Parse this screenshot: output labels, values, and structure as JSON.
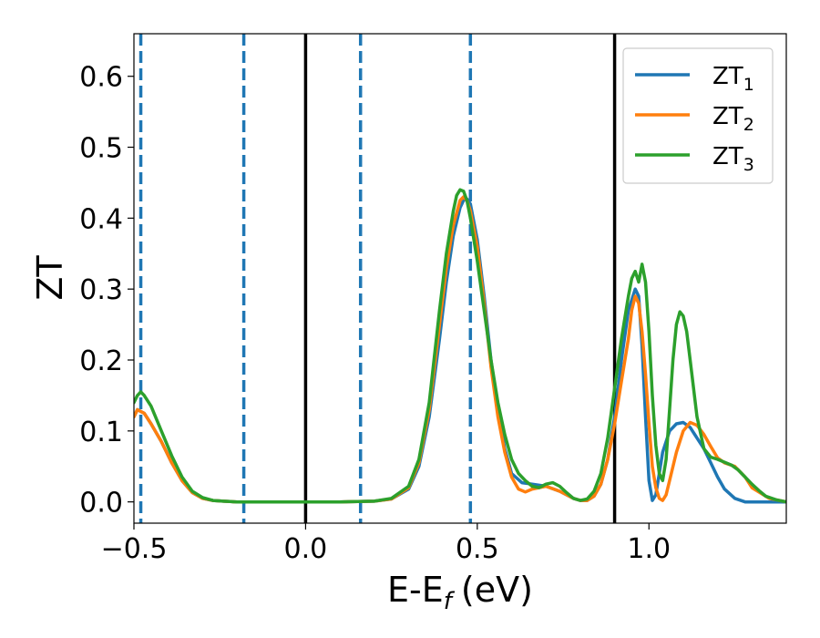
{
  "chart_data": {
    "type": "line",
    "xlabel": "E-E",
    "xlabel_sub": "f",
    "xlabel_unit": "(eV)",
    "ylabel": "ZT",
    "xlim": [
      -0.5,
      1.4
    ],
    "ylim": [
      -0.03,
      0.66
    ],
    "grid": false,
    "legend_position": "top-right",
    "x_ticks": [
      {
        "value": -0.5,
        "label": "−0.5"
      },
      {
        "value": 0.0,
        "label": "0.0"
      },
      {
        "value": 0.5,
        "label": "0.5"
      },
      {
        "value": 1.0,
        "label": "1.0"
      }
    ],
    "y_ticks": [
      {
        "value": 0.0,
        "label": "0.0"
      },
      {
        "value": 0.1,
        "label": "0.1"
      },
      {
        "value": 0.2,
        "label": "0.2"
      },
      {
        "value": 0.3,
        "label": "0.3"
      },
      {
        "value": 0.4,
        "label": "0.4"
      },
      {
        "value": 0.5,
        "label": "0.5"
      },
      {
        "value": 0.6,
        "label": "0.6"
      }
    ],
    "vlines_solid": [
      0.0,
      0.9
    ],
    "vlines_dashed": [
      -0.48,
      -0.18,
      0.16,
      0.48
    ],
    "colors": {
      "solid_line": "#000000",
      "dashed_line": "#1f77b4"
    },
    "series": [
      {
        "name": "ZT",
        "name_sub": "1",
        "color": "#1f77b4",
        "x": [
          -0.5,
          -0.49,
          -0.47,
          -0.45,
          -0.42,
          -0.39,
          -0.36,
          -0.33,
          -0.3,
          -0.27,
          -0.24,
          -0.2,
          -0.1,
          0.0,
          0.1,
          0.2,
          0.25,
          0.3,
          0.33,
          0.36,
          0.39,
          0.41,
          0.43,
          0.45,
          0.46,
          0.47,
          0.48,
          0.5,
          0.52,
          0.54,
          0.56,
          0.58,
          0.6,
          0.63,
          0.66,
          0.7,
          0.74,
          0.78,
          0.8,
          0.82,
          0.84,
          0.86,
          0.88,
          0.9,
          0.92,
          0.94,
          0.96,
          0.97,
          0.98,
          0.99,
          1.0,
          1.01,
          1.02,
          1.03,
          1.04,
          1.06,
          1.08,
          1.1,
          1.12,
          1.14,
          1.16,
          1.18,
          1.2,
          1.22,
          1.25,
          1.28,
          1.3,
          1.35,
          1.4
        ],
        "y": [
          0.12,
          0.13,
          0.125,
          0.11,
          0.085,
          0.055,
          0.03,
          0.013,
          0.005,
          0.002,
          0.001,
          0.0,
          0.0,
          0.0,
          0.0,
          0.001,
          0.004,
          0.018,
          0.05,
          0.12,
          0.23,
          0.31,
          0.375,
          0.415,
          0.425,
          0.427,
          0.42,
          0.37,
          0.29,
          0.2,
          0.13,
          0.075,
          0.04,
          0.027,
          0.025,
          0.022,
          0.015,
          0.005,
          0.002,
          0.002,
          0.008,
          0.025,
          0.06,
          0.12,
          0.2,
          0.27,
          0.3,
          0.29,
          0.22,
          0.12,
          0.03,
          0.002,
          0.01,
          0.04,
          0.07,
          0.1,
          0.11,
          0.112,
          0.105,
          0.09,
          0.075,
          0.055,
          0.035,
          0.018,
          0.005,
          0.0,
          0.0,
          0.0,
          0.0
        ]
      },
      {
        "name": "ZT",
        "name_sub": "2",
        "color": "#ff7f0e",
        "x": [
          -0.5,
          -0.49,
          -0.47,
          -0.45,
          -0.42,
          -0.39,
          -0.36,
          -0.33,
          -0.3,
          -0.27,
          -0.24,
          -0.2,
          -0.1,
          0.0,
          0.1,
          0.2,
          0.25,
          0.3,
          0.33,
          0.36,
          0.39,
          0.41,
          0.43,
          0.45,
          0.46,
          0.47,
          0.48,
          0.5,
          0.52,
          0.54,
          0.56,
          0.58,
          0.6,
          0.62,
          0.64,
          0.66,
          0.7,
          0.74,
          0.78,
          0.8,
          0.82,
          0.84,
          0.86,
          0.88,
          0.9,
          0.92,
          0.94,
          0.95,
          0.96,
          0.97,
          0.98,
          0.99,
          1.0,
          1.01,
          1.02,
          1.03,
          1.04,
          1.05,
          1.06,
          1.08,
          1.1,
          1.12,
          1.14,
          1.16,
          1.18,
          1.2,
          1.22,
          1.25,
          1.28,
          1.3,
          1.35,
          1.4
        ],
        "y": [
          0.12,
          0.13,
          0.125,
          0.11,
          0.085,
          0.055,
          0.03,
          0.013,
          0.005,
          0.002,
          0.001,
          0.0,
          0.0,
          0.0,
          0.0,
          0.001,
          0.004,
          0.02,
          0.055,
          0.13,
          0.25,
          0.33,
          0.39,
          0.425,
          0.43,
          0.425,
          0.41,
          0.36,
          0.28,
          0.19,
          0.12,
          0.07,
          0.035,
          0.018,
          0.014,
          0.018,
          0.022,
          0.015,
          0.005,
          0.002,
          0.002,
          0.008,
          0.025,
          0.06,
          0.11,
          0.17,
          0.23,
          0.27,
          0.29,
          0.28,
          0.24,
          0.18,
          0.11,
          0.05,
          0.02,
          0.005,
          0.002,
          0.01,
          0.03,
          0.07,
          0.1,
          0.112,
          0.108,
          0.095,
          0.078,
          0.062,
          0.055,
          0.05,
          0.035,
          0.02,
          0.005,
          0.0
        ]
      },
      {
        "name": "ZT",
        "name_sub": "3",
        "color": "#2ca02c",
        "x": [
          -0.5,
          -0.49,
          -0.48,
          -0.47,
          -0.45,
          -0.42,
          -0.39,
          -0.36,
          -0.33,
          -0.3,
          -0.27,
          -0.24,
          -0.2,
          -0.1,
          0.0,
          0.1,
          0.2,
          0.25,
          0.3,
          0.33,
          0.36,
          0.39,
          0.41,
          0.43,
          0.44,
          0.45,
          0.46,
          0.47,
          0.48,
          0.5,
          0.52,
          0.54,
          0.56,
          0.58,
          0.6,
          0.62,
          0.64,
          0.66,
          0.68,
          0.7,
          0.72,
          0.74,
          0.76,
          0.78,
          0.8,
          0.82,
          0.84,
          0.86,
          0.88,
          0.9,
          0.92,
          0.94,
          0.95,
          0.96,
          0.97,
          0.98,
          0.99,
          1.0,
          1.01,
          1.02,
          1.03,
          1.04,
          1.05,
          1.06,
          1.07,
          1.08,
          1.09,
          1.1,
          1.11,
          1.12,
          1.14,
          1.16,
          1.18,
          1.2,
          1.22,
          1.24,
          1.26,
          1.28,
          1.3,
          1.32,
          1.34,
          1.37,
          1.4
        ],
        "y": [
          0.14,
          0.15,
          0.155,
          0.15,
          0.135,
          0.1,
          0.065,
          0.035,
          0.015,
          0.006,
          0.002,
          0.001,
          0.0,
          0.0,
          0.0,
          0.0,
          0.001,
          0.005,
          0.022,
          0.06,
          0.14,
          0.27,
          0.35,
          0.41,
          0.432,
          0.44,
          0.438,
          0.425,
          0.4,
          0.34,
          0.27,
          0.2,
          0.14,
          0.095,
          0.06,
          0.04,
          0.03,
          0.022,
          0.02,
          0.025,
          0.027,
          0.022,
          0.013,
          0.005,
          0.002,
          0.004,
          0.015,
          0.04,
          0.09,
          0.16,
          0.23,
          0.29,
          0.315,
          0.325,
          0.31,
          0.335,
          0.31,
          0.24,
          0.15,
          0.08,
          0.04,
          0.03,
          0.06,
          0.13,
          0.2,
          0.25,
          0.268,
          0.262,
          0.24,
          0.2,
          0.12,
          0.075,
          0.063,
          0.06,
          0.056,
          0.052,
          0.045,
          0.035,
          0.025,
          0.016,
          0.008,
          0.003,
          0.0
        ]
      }
    ]
  }
}
